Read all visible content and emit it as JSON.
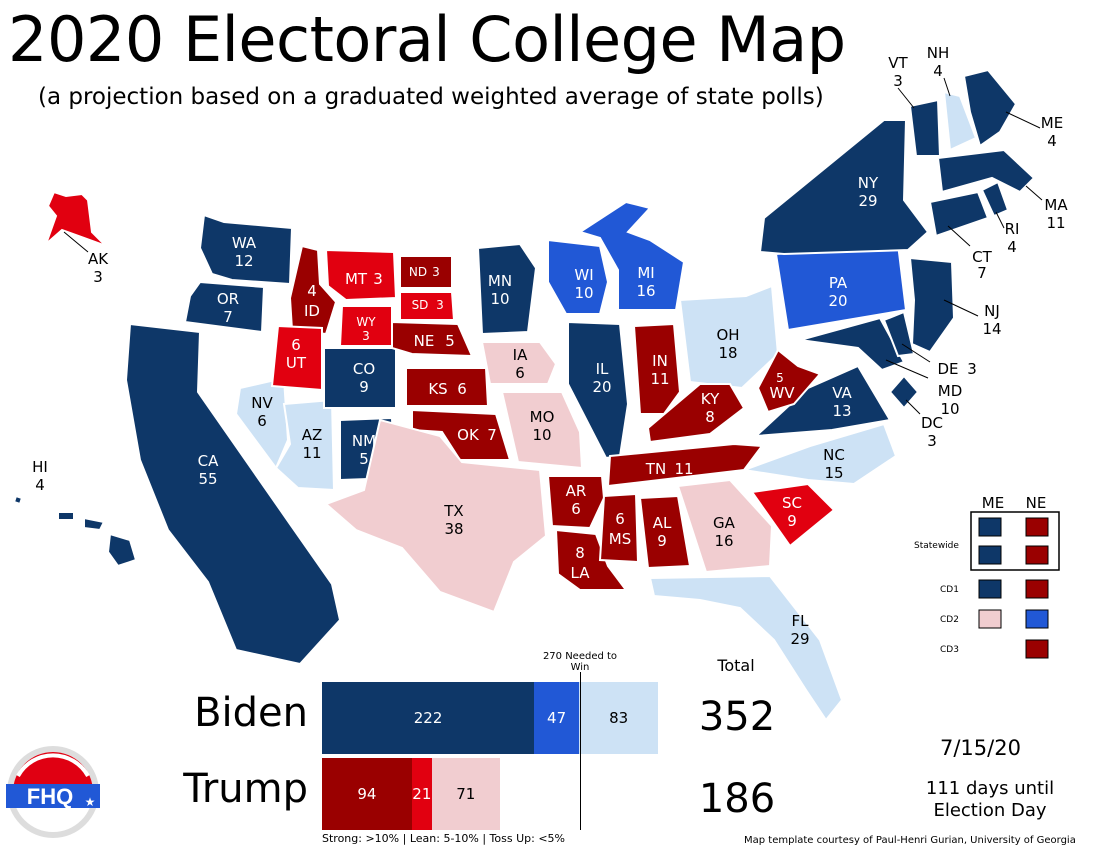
{
  "title": "2020 Electoral College Map",
  "subtitle": "(a projection based on a graduated weighted average of state polls)",
  "colors": {
    "strong_d": "#0e3768",
    "lean_d": "#2158d6",
    "tossup_d": "#cde2f5",
    "strong_r": "#9a0000",
    "lean_r": "#e10010",
    "tossup_r": "#f1cdd0"
  },
  "states": {
    "WA": {
      "abbr": "WA",
      "ev": "12"
    },
    "OR": {
      "abbr": "OR",
      "ev": "7"
    },
    "CA": {
      "abbr": "CA",
      "ev": "55"
    },
    "NV": {
      "abbr": "NV",
      "ev": "6"
    },
    "ID": {
      "abbr": "ID",
      "ev": "4"
    },
    "MT": {
      "abbr": "MT",
      "ev": "3"
    },
    "WY": {
      "abbr": "WY",
      "ev": "3"
    },
    "UT": {
      "abbr": "UT",
      "ev": "6"
    },
    "AZ": {
      "abbr": "AZ",
      "ev": "11"
    },
    "CO": {
      "abbr": "CO",
      "ev": "9"
    },
    "NM": {
      "abbr": "NM",
      "ev": "5"
    },
    "ND": {
      "abbr": "ND",
      "ev": "3"
    },
    "SD": {
      "abbr": "SD",
      "ev": "3"
    },
    "NE": {
      "abbr": "NE",
      "ev": "5"
    },
    "KS": {
      "abbr": "KS",
      "ev": "6"
    },
    "OK": {
      "abbr": "OK",
      "ev": "7"
    },
    "TX": {
      "abbr": "TX",
      "ev": "38"
    },
    "MN": {
      "abbr": "MN",
      "ev": "10"
    },
    "IA": {
      "abbr": "IA",
      "ev": "6"
    },
    "MO": {
      "abbr": "MO",
      "ev": "10"
    },
    "AR": {
      "abbr": "AR",
      "ev": "6"
    },
    "LA": {
      "abbr": "LA",
      "ev": "8"
    },
    "WI": {
      "abbr": "WI",
      "ev": "10"
    },
    "IL": {
      "abbr": "IL",
      "ev": "20"
    },
    "MI": {
      "abbr": "MI",
      "ev": "16"
    },
    "IN": {
      "abbr": "IN",
      "ev": "11"
    },
    "OH": {
      "abbr": "OH",
      "ev": "18"
    },
    "KY": {
      "abbr": "KY",
      "ev": "8"
    },
    "TN": {
      "abbr": "TN",
      "ev": "11"
    },
    "MS": {
      "abbr": "MS",
      "ev": "6"
    },
    "AL": {
      "abbr": "AL",
      "ev": "9"
    },
    "GA": {
      "abbr": "GA",
      "ev": "16"
    },
    "FL": {
      "abbr": "FL",
      "ev": "29"
    },
    "SC": {
      "abbr": "SC",
      "ev": "9"
    },
    "NC": {
      "abbr": "NC",
      "ev": "15"
    },
    "VA": {
      "abbr": "VA",
      "ev": "13"
    },
    "WV": {
      "abbr": "WV",
      "ev": "5"
    },
    "PA": {
      "abbr": "PA",
      "ev": "20"
    },
    "NY": {
      "abbr": "NY",
      "ev": "29"
    },
    "NJ": {
      "abbr": "NJ",
      "ev": "14"
    },
    "DE": {
      "abbr": "DE",
      "ev": "3"
    },
    "MD": {
      "abbr": "MD",
      "ev": "10"
    },
    "DC": {
      "abbr": "DC",
      "ev": "3"
    },
    "CT": {
      "abbr": "CT",
      "ev": "7"
    },
    "RI": {
      "abbr": "RI",
      "ev": "4"
    },
    "MA": {
      "abbr": "MA",
      "ev": "11"
    },
    "VT": {
      "abbr": "VT",
      "ev": "3"
    },
    "NH": {
      "abbr": "NH",
      "ev": "4"
    },
    "ME": {
      "abbr": "ME",
      "ev": "4"
    },
    "AK": {
      "abbr": "AK",
      "ev": "3"
    },
    "HI": {
      "abbr": "HI",
      "ev": "4"
    }
  },
  "district_legend": {
    "me_header": "ME",
    "ne_header": "NE",
    "statewide": "Statewide",
    "cd1": "CD1",
    "cd2": "CD2",
    "cd3": "CD3"
  },
  "tally": {
    "needed": "270 Needed to Win",
    "total_header": "Total",
    "biden": {
      "name": "Biden",
      "strong": 222,
      "lean": 47,
      "tossup": 83,
      "total": "352"
    },
    "trump": {
      "name": "Trump",
      "strong": 94,
      "lean": 21,
      "tossup": 71,
      "total": "186"
    }
  },
  "footer_legend": "Strong: >10%  |  Lean: 5-10%  |  Toss Up: <5%",
  "credit": "Map template courtesy of Paul-Henri Gurian, University of Georgia",
  "date": "7/15/20",
  "days_line1": "111 days until",
  "days_line2": "Election Day",
  "logo_text": "FHQ"
}
